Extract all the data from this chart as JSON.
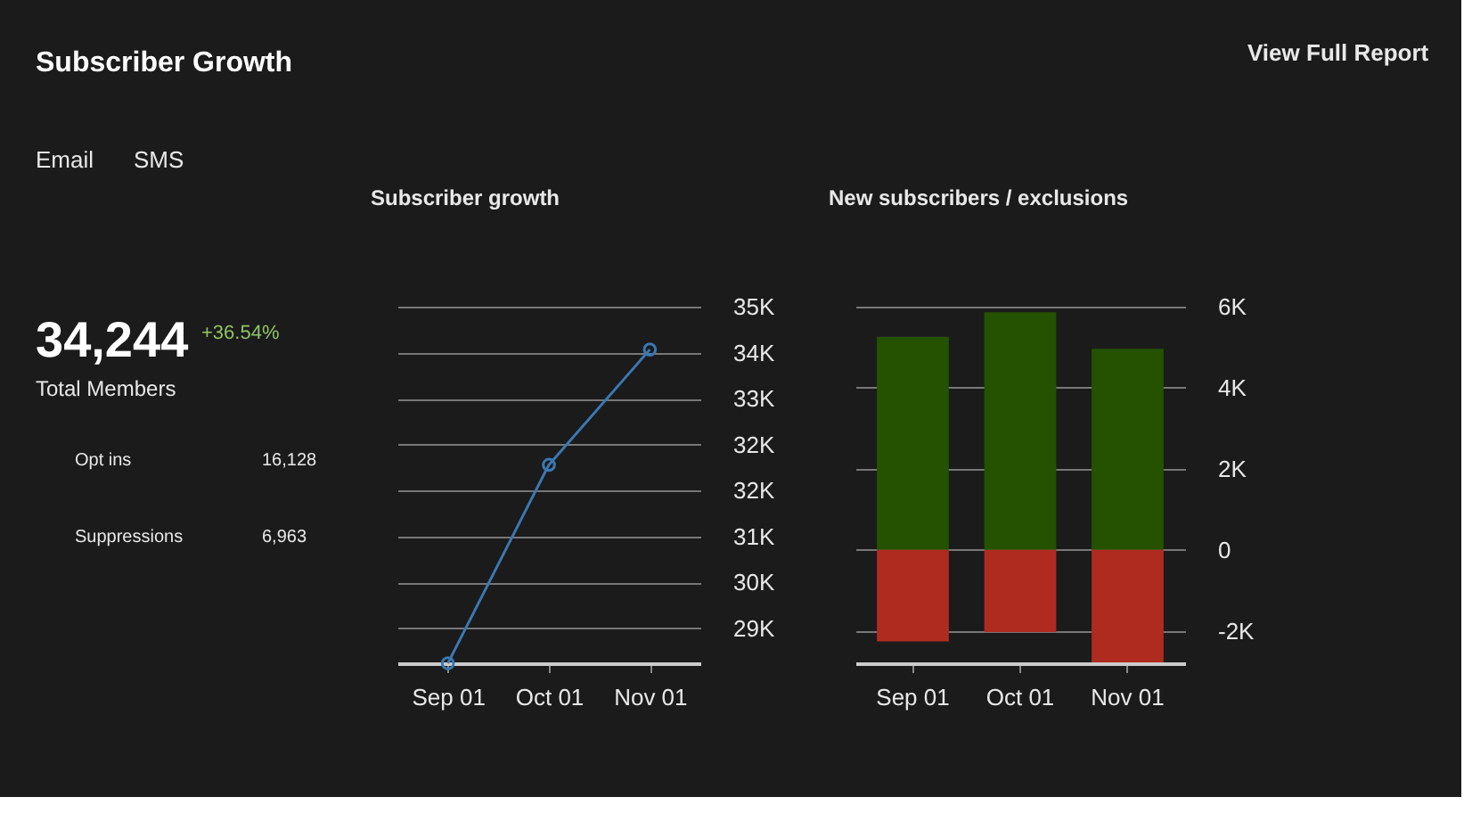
{
  "chart_data": [
    {
      "type": "other",
      "title": "Subscriber Growth",
      "annotations": [
        "Email",
        "SMS",
        "View Full Report"
      ]
    },
    {
      "type": "other",
      "annotations": [
        "34,244",
        "+36.54%",
        "Total Members",
        "Opt ins",
        "16,128",
        "Suppressions",
        "6,963"
      ]
    },
    {
      "type": "line",
      "title": "Subscriber growth",
      "categories": [
        "Sep 01",
        "Oct 01",
        "Nov 01"
      ],
      "series": [
        {
          "color": "#3b78b2",
          "values": [
            28350,
            32050,
            34200
          ]
        }
      ],
      "ylim": [
        28350,
        35000
      ],
      "yticks": [
        {
          "value": 29000,
          "label": "29K"
        },
        {
          "value": 29857,
          "label": "30K"
        },
        {
          "value": 30714,
          "label": "31K"
        },
        {
          "value": 31571,
          "label": "32K"
        },
        {
          "value": 32429,
          "label": "32K"
        },
        {
          "value": 33286,
          "label": "33K"
        },
        {
          "value": 34143,
          "label": "34K"
        },
        {
          "value": 35000,
          "label": "35K"
        }
      ],
      "grid": "y",
      "marker": "circle"
    },
    {
      "type": "bar",
      "title": "New subscribers / exclusions",
      "categories": [
        "Sep 01",
        "Oct 01",
        "Nov 01"
      ],
      "stacked": true,
      "series": [
        {
          "color": "#245200",
          "values": [
            5260,
            5860,
            4960
          ]
        },
        {
          "color": "#b02b1f",
          "values": [
            -2260,
            -2030,
            -2780
          ]
        }
      ],
      "ylim": [
        -2800,
        6000
      ],
      "yticks": [
        {
          "value": -2000,
          "label": "-2K"
        },
        {
          "value": 0,
          "label": "0"
        },
        {
          "value": 2000,
          "label": "2K"
        },
        {
          "value": 4000,
          "label": "4K"
        },
        {
          "value": 6000,
          "label": "6K"
        }
      ],
      "grid": "y"
    }
  ]
}
